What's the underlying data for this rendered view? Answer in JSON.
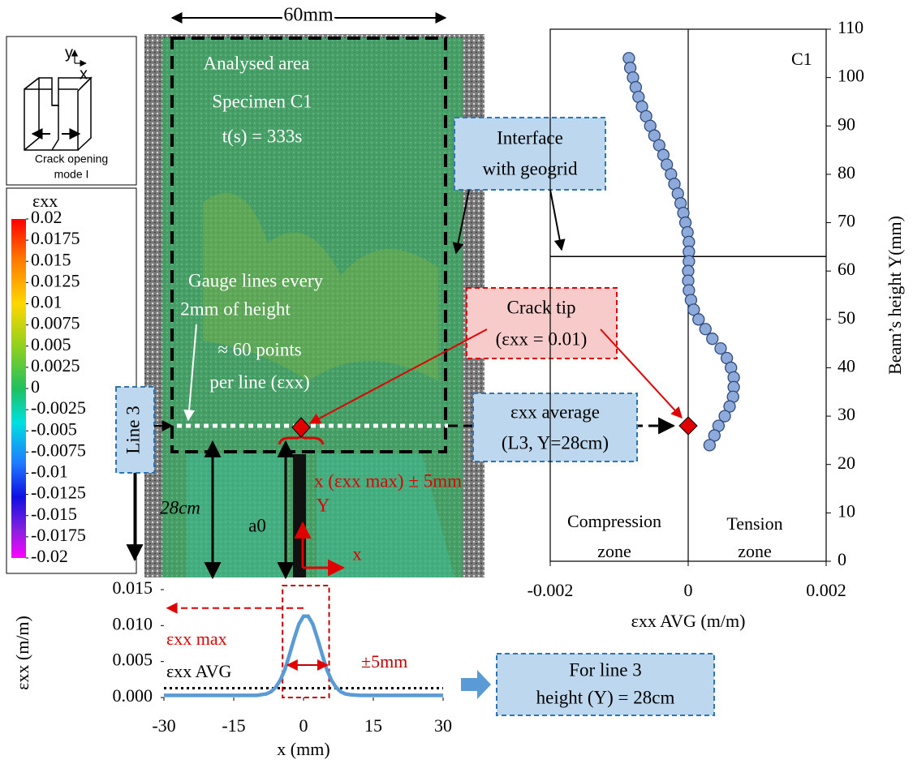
{
  "chart_data": [
    {
      "type": "scatter",
      "title": "C1",
      "x_label": "εxx AVG (m/m)",
      "y_label": "Beam’s height Y(mm)",
      "annotations": [
        "Compression",
        "zone",
        "Tension",
        "zone"
      ],
      "x": [
        -0.00086,
        -0.00084,
        -0.0008,
        -0.00076,
        -0.00072,
        -0.00067,
        -0.00061,
        -0.00055,
        -0.00049,
        -0.00042,
        -0.00036,
        -0.00031,
        -0.00025,
        -0.0002,
        -0.00015,
        -0.00011,
        -7e-05,
        -4e-05,
        -1e-05,
        1e-05,
        1e-05,
        1e-05,
        0,
        0,
        1e-05,
        4e-05,
        8e-05,
        0.00015,
        0.00025,
        0.00035,
        0.00047,
        0.00056,
        0.00062,
        0.00066,
        0.00066,
        0.00065,
        0.0006,
        0.00053,
        0.00044,
        0.00038,
        0.00031
      ],
      "values": [
        104,
        102,
        100,
        98,
        96,
        94,
        92,
        90,
        88,
        86,
        84,
        82,
        80,
        78,
        76,
        74,
        72,
        70,
        68,
        66,
        64,
        62,
        60,
        58,
        56,
        54,
        52,
        50,
        48,
        46,
        44,
        42,
        40,
        38,
        36,
        34,
        32,
        30,
        28,
        26,
        24
      ],
      "color": "#8eaadb",
      "highlight": {
        "x": 0,
        "y": 28,
        "color": "#e00000"
      },
      "hline": 63,
      "vline": 0,
      "xlim": [
        -0.002,
        0.002
      ],
      "xticks": [
        -0.002,
        0,
        0.002
      ],
      "ylim": [
        0,
        110
      ],
      "yticks": [
        0,
        10,
        20,
        30,
        40,
        50,
        60,
        70,
        80,
        90,
        100,
        110
      ]
    },
    {
      "type": "line",
      "x_label": "x (mm)",
      "y_label": "εxx (m/m)",
      "annotations": [
        "εxx max",
        "εxx AVG",
        "±5mm"
      ],
      "x": [
        -30,
        -25,
        -20,
        -15,
        -12,
        -10,
        -9,
        -8,
        -7,
        -6,
        -5,
        -4,
        -3,
        -2,
        -1,
        0,
        1,
        2,
        3,
        4,
        5,
        6,
        7,
        8,
        9,
        10,
        12,
        15,
        20,
        25,
        30
      ],
      "values": [
        0.0003,
        0.0003,
        0.0003,
        0.0003,
        0.0003,
        0.0003,
        0.0004,
        0.0005,
        0.0008,
        0.0014,
        0.0024,
        0.0039,
        0.006,
        0.0082,
        0.0102,
        0.0113,
        0.0113,
        0.0102,
        0.0082,
        0.006,
        0.0039,
        0.0024,
        0.0014,
        0.0008,
        0.0005,
        0.0004,
        0.0003,
        0.0003,
        0.0003,
        0.0003,
        0.0003
      ],
      "color": "#5b9bd5",
      "average": 0.0013,
      "window": [
        -4.5,
        5.5
      ],
      "xlim": [
        -30,
        30
      ],
      "xticks": [
        -30,
        -15,
        0,
        15,
        30
      ],
      "ylim": [
        0,
        0.015
      ],
      "yticks": [
        {
          "value": 0,
          "label": "0.000"
        },
        {
          "value": 0.005,
          "label": "0.005"
        },
        {
          "value": 0.01,
          "label": "0.010"
        },
        {
          "value": 0.015,
          "label": "0.015"
        }
      ]
    },
    {
      "type": "colorbar",
      "title": "εxx",
      "vlim": [
        -0.02,
        0.02
      ],
      "ticks": [
        0.02,
        0.0175,
        0.015,
        0.0125,
        0.01,
        0.0075,
        0.005,
        0.0025,
        0,
        -0.0025,
        -0.005,
        -0.0075,
        -0.01,
        -0.0125,
        -0.015,
        -0.0175,
        -0.02
      ]
    }
  ],
  "figure": {
    "crack_mode": {
      "axis_y": "y",
      "axis_x": "x",
      "caption": [
        "Crack opening",
        "mode I"
      ]
    },
    "photo": {
      "width_label": "60mm",
      "area": "Analysed area",
      "specimen": "Specimen C1",
      "time": "t(s) = 333s",
      "gauge": [
        "Gauge lines every",
        "2mm of height"
      ],
      "points": [
        "≈ 60 points",
        "per line (εxx)"
      ],
      "height": "28cm",
      "notch": "a0",
      "window": "x (εxx max) ± 5mm",
      "axis_y": "Y",
      "axis_x": "x"
    },
    "callouts": {
      "line": "Line 3",
      "interface": [
        "Interface",
        "with geogrid"
      ],
      "crack_tip": [
        "Crack tip",
        "(εxx = 0.01)"
      ],
      "average": [
        "εxx average",
        "(L3, Y=28cm)"
      ],
      "result": [
        "For line 3",
        "height (Y) = 28cm"
      ]
    }
  }
}
